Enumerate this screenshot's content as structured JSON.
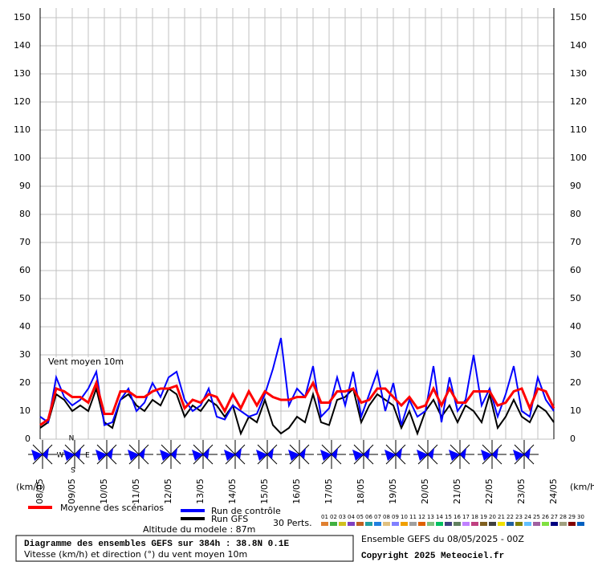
{
  "chart_data": {
    "type": "line",
    "annotation": "Vent moyen 10m",
    "y_unit_left": "(km/h)",
    "y_unit_right": "(km/h)",
    "title": "Diagramme des ensembles GEFS sur 384h : 38.8N 0.1E",
    "subtitle": "Vitesse (km/h) et direction (°) du vent moyen 10m",
    "altitude": "Altitude du modele : 87m",
    "run_info": "Ensemble GEFS du 08/05/2025 - 00Z",
    "copyright": "Copyright 2025 Meteociel.fr",
    "perturbations_label": "30 Perts.",
    "compass": [
      "N",
      "S",
      "E",
      "W"
    ],
    "categories": [
      "08/05",
      null,
      null,
      null,
      "09/05",
      null,
      null,
      null,
      "10/05",
      null,
      null,
      null,
      "11/05",
      null,
      null,
      null,
      "12/05",
      null,
      null,
      null,
      "13/05",
      null,
      null,
      null,
      "14/05",
      null,
      null,
      null,
      "15/05",
      null,
      null,
      null,
      "16/05",
      null,
      null,
      null,
      "17/05",
      null,
      null,
      null,
      "18/05",
      null,
      null,
      null,
      "19/05",
      null,
      null,
      null,
      "20/05",
      null,
      null,
      null,
      "21/05",
      null,
      null,
      null,
      "22/05",
      null,
      null,
      null,
      "23/05",
      null,
      null,
      null,
      "24/05"
    ],
    "ylim": [
      0,
      150
    ],
    "yticks": [
      0,
      10,
      20,
      30,
      40,
      50,
      60,
      70,
      80,
      90,
      100,
      110,
      120,
      130,
      140,
      150
    ],
    "grid": true,
    "series": [
      {
        "name": "Run GFS",
        "color": "#000000",
        "values": [
          4,
          6,
          16,
          14,
          10,
          12,
          10,
          18,
          6,
          4,
          14,
          16,
          12,
          10,
          14,
          12,
          18,
          16,
          8,
          12,
          10,
          14,
          12,
          8,
          12,
          2,
          8,
          6,
          14,
          5,
          2,
          4,
          8,
          6,
          16,
          6,
          5,
          14,
          15,
          18,
          6,
          12,
          16,
          14,
          12,
          4,
          10,
          2,
          10,
          14,
          8,
          12,
          6,
          12,
          10,
          6,
          16,
          4,
          8,
          14,
          8,
          6,
          12,
          10,
          6
        ]
      },
      {
        "name": "Run de contrôle",
        "color": "#0000ff",
        "values": [
          8,
          6,
          22,
          15,
          12,
          14,
          18,
          24,
          5,
          6,
          14,
          18,
          10,
          13,
          20,
          15,
          22,
          24,
          14,
          10,
          12,
          18,
          8,
          7,
          12,
          10,
          8,
          9,
          16,
          25,
          36,
          12,
          18,
          15,
          26,
          8,
          11,
          22,
          12,
          24,
          8,
          16,
          24,
          10,
          20,
          5,
          14,
          8,
          10,
          26,
          6,
          22,
          10,
          14,
          30,
          12,
          18,
          8,
          16,
          26,
          10,
          8,
          22,
          14,
          10
        ]
      },
      {
        "name": "Moyenne des scénarios",
        "color": "#ff0000",
        "values": [
          5,
          7,
          18,
          17,
          15,
          15,
          13,
          20,
          9,
          9,
          17,
          17,
          15,
          15,
          17,
          18,
          18,
          19,
          11,
          14,
          13,
          16,
          15,
          10,
          16,
          11,
          17,
          12,
          17,
          15,
          14,
          14,
          15,
          15,
          20,
          13,
          13,
          17,
          17,
          18,
          13,
          14,
          18,
          18,
          15,
          12,
          15,
          11,
          12,
          18,
          12,
          18,
          13,
          13,
          17,
          17,
          17,
          12,
          13,
          17,
          18,
          11,
          18,
          17,
          11
        ]
      }
    ],
    "perturbations": [
      {
        "label": "01",
        "color": "#e08030"
      },
      {
        "label": "02",
        "color": "#40b040"
      },
      {
        "label": "03",
        "color": "#d0c020"
      },
      {
        "label": "04",
        "color": "#8040c0"
      },
      {
        "label": "05",
        "color": "#c06020"
      },
      {
        "label": "06",
        "color": "#20a0a0"
      },
      {
        "label": "07",
        "color": "#2080e0"
      },
      {
        "label": "08",
        "color": "#e0c080"
      },
      {
        "label": "09",
        "color": "#8080ff"
      },
      {
        "label": "10",
        "color": "#f0a000"
      },
      {
        "label": "11",
        "color": "#a0a0a0"
      },
      {
        "label": "12",
        "color": "#e06000"
      },
      {
        "label": "13",
        "color": "#80c080"
      },
      {
        "label": "14",
        "color": "#00c060"
      },
      {
        "label": "15",
        "color": "#404080"
      },
      {
        "label": "16",
        "color": "#608060"
      },
      {
        "label": "17",
        "color": "#c080ff"
      },
      {
        "label": "18",
        "color": "#c04080"
      },
      {
        "label": "19",
        "color": "#806020"
      },
      {
        "label": "20",
        "color": "#404040"
      },
      {
        "label": "21",
        "color": "#f0e000"
      },
      {
        "label": "22",
        "color": "#2060a0"
      },
      {
        "label": "23",
        "color": "#808000"
      },
      {
        "label": "24",
        "color": "#60c0ff"
      },
      {
        "label": "25",
        "color": "#a060a0"
      },
      {
        "label": "26",
        "color": "#80e040"
      },
      {
        "label": "27",
        "color": "#000080"
      },
      {
        "label": "28",
        "color": "#a0a080"
      },
      {
        "label": "29",
        "color": "#800000"
      },
      {
        "label": "30",
        "color": "#0060c0"
      }
    ]
  }
}
